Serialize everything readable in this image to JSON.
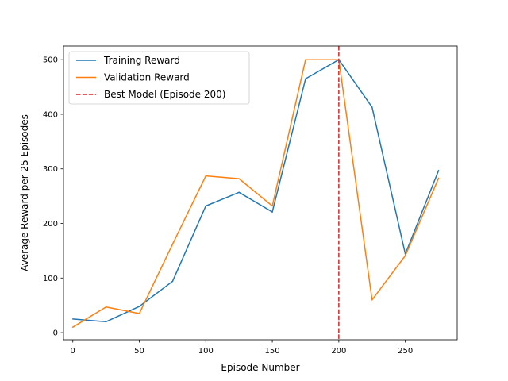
{
  "chart_data": {
    "type": "line",
    "title": "",
    "xlabel": "Episode Number",
    "ylabel": "Average Reward per 25 Episodes",
    "xlim": [
      -7,
      289
    ],
    "ylim": [
      -13,
      525
    ],
    "xticks": [
      0,
      50,
      100,
      150,
      200,
      250
    ],
    "yticks": [
      0,
      100,
      200,
      300,
      400,
      500
    ],
    "grid": false,
    "legend_position": "top-left",
    "series": [
      {
        "name": "Training Reward",
        "style": "solid",
        "color": "#1f77b4",
        "x": [
          0,
          25,
          50,
          75,
          100,
          125,
          150,
          175,
          200,
          225,
          250,
          275
        ],
        "values": [
          25,
          20,
          48,
          94,
          232,
          257,
          221,
          465,
          500,
          413,
          144,
          297
        ]
      },
      {
        "name": "Validation Reward",
        "style": "solid",
        "color": "#ff7f0e",
        "x": [
          0,
          25,
          50,
          75,
          100,
          125,
          150,
          175,
          200,
          225,
          250,
          275
        ],
        "values": [
          10,
          47,
          35,
          162,
          287,
          282,
          232,
          500,
          500,
          60,
          141,
          283
        ]
      }
    ],
    "vlines": [
      {
        "name": "Best Model (Episode 200)",
        "x": 200,
        "style": "dashed",
        "color": "#d62728"
      }
    ]
  }
}
